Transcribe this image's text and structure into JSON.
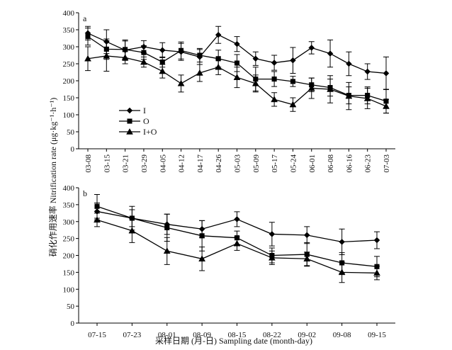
{
  "chart_data": [
    {
      "type": "line",
      "panel_label": "a",
      "ylim": [
        0,
        400
      ],
      "yticks": [
        0,
        50,
        100,
        150,
        200,
        250,
        300,
        350,
        400
      ],
      "categories": [
        "03-08",
        "03-15",
        "03-21",
        "03-29",
        "04-05",
        "04-12",
        "04-17",
        "04-26",
        "05-03",
        "05-09",
        "05-17",
        "05-24",
        "06-01",
        "06-08",
        "06-16",
        "06-23",
        "07-03"
      ],
      "legend_position": "left-lower",
      "series": [
        {
          "name": "I",
          "marker": "diamond",
          "values": [
            340,
            315,
            290,
            300,
            290,
            285,
            270,
            335,
            308,
            265,
            253,
            260,
            297,
            280,
            250,
            227,
            222
          ],
          "errors": [
            20,
            35,
            30,
            18,
            22,
            25,
            22,
            25,
            22,
            20,
            22,
            38,
            18,
            40,
            35,
            23,
            48
          ]
        },
        {
          "name": "O",
          "marker": "square",
          "values": [
            330,
            293,
            292,
            283,
            255,
            289,
            275,
            265,
            252,
            205,
            205,
            198,
            188,
            180,
            157,
            157,
            140
          ],
          "errors": [
            25,
            30,
            25,
            20,
            15,
            25,
            20,
            25,
            25,
            35,
            22,
            15,
            20,
            25,
            25,
            25,
            35
          ]
        },
        {
          "name": "I+O",
          "marker": "triangle",
          "values": [
            265,
            273,
            268,
            255,
            228,
            192,
            223,
            240,
            210,
            192,
            145,
            130,
            178,
            175,
            155,
            148,
            125
          ],
          "errors": [
            35,
            45,
            18,
            15,
            20,
            25,
            25,
            22,
            30,
            25,
            20,
            20,
            30,
            40,
            40,
            30,
            20
          ]
        }
      ]
    },
    {
      "type": "line",
      "panel_label": "b",
      "ylim": [
        0,
        400
      ],
      "yticks": [
        0,
        50,
        100,
        150,
        200,
        250,
        300,
        350,
        400
      ],
      "categories": [
        "07-15",
        "07-23",
        "08-01",
        "08-09",
        "08-15",
        "08-22",
        "09-02",
        "09-08",
        "09-15"
      ],
      "series": [
        {
          "name": "I",
          "marker": "diamond",
          "values": [
            330,
            310,
            292,
            278,
            307,
            263,
            260,
            240,
            245
          ],
          "errors": [
            25,
            25,
            30,
            25,
            22,
            35,
            25,
            38,
            25
          ]
        },
        {
          "name": "O",
          "marker": "square",
          "values": [
            345,
            310,
            282,
            258,
            252,
            200,
            203,
            178,
            167
          ],
          "errors": [
            35,
            35,
            40,
            45,
            20,
            22,
            35,
            30,
            30
          ]
        },
        {
          "name": "I+O",
          "marker": "triangle",
          "values": [
            305,
            273,
            213,
            190,
            235,
            193,
            190,
            150,
            148
          ],
          "errors": [
            20,
            35,
            40,
            35,
            20,
            20,
            20,
            30,
            20
          ]
        }
      ]
    }
  ],
  "ylabel": "硝化作用速率 Nitrification rate (μg·kg⁻¹·h⁻¹)",
  "xlabel": "采样日期 (月-日) Sampling date (month-day)"
}
